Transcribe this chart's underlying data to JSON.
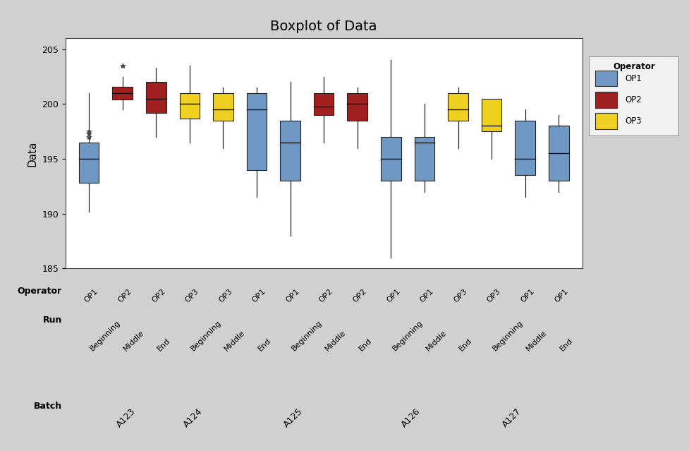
{
  "title": "Boxplot of Data",
  "ylabel": "Data",
  "ylim": [
    185,
    206
  ],
  "yticks": [
    185,
    190,
    195,
    200,
    205
  ],
  "bg_color": "#d0d0d0",
  "plot_bg_color": "#ffffff",
  "boxes": [
    {
      "operator": "OP1",
      "run": "Beginning",
      "batch": "A123",
      "color": "#7098c4",
      "q1": 192.8,
      "median": 195.0,
      "q3": 196.5,
      "whisker_low": 190.2,
      "whisker_high": 201.0,
      "fliers": [
        197.0,
        197.3,
        197.5
      ]
    },
    {
      "operator": "OP2",
      "run": "Middle",
      "batch": "A123",
      "color": "#a02020",
      "q1": 200.4,
      "median": 201.0,
      "q3": 201.6,
      "whisker_low": 199.5,
      "whisker_high": 202.5,
      "fliers": [
        203.5
      ]
    },
    {
      "operator": "OP2",
      "run": "End",
      "batch": "A123",
      "color": "#a02020",
      "q1": 199.2,
      "median": 200.5,
      "q3": 202.0,
      "whisker_low": 197.0,
      "whisker_high": 203.3,
      "fliers": []
    },
    {
      "operator": "OP3",
      "run": "Beginning",
      "batch": "A124",
      "color": "#f0d020",
      "q1": 198.7,
      "median": 200.0,
      "q3": 201.0,
      "whisker_low": 196.5,
      "whisker_high": 203.5,
      "fliers": []
    },
    {
      "operator": "OP3",
      "run": "Middle",
      "batch": "A124",
      "color": "#f0d020",
      "q1": 198.5,
      "median": 199.5,
      "q3": 201.0,
      "whisker_low": 196.0,
      "whisker_high": 201.5,
      "fliers": []
    },
    {
      "operator": "OP1",
      "run": "End",
      "batch": "A124",
      "color": "#7098c4",
      "q1": 194.0,
      "median": 199.5,
      "q3": 201.0,
      "whisker_low": 191.5,
      "whisker_high": 201.5,
      "fliers": []
    },
    {
      "operator": "OP1",
      "run": "Beginning",
      "batch": "A125",
      "color": "#7098c4",
      "q1": 193.0,
      "median": 196.5,
      "q3": 198.5,
      "whisker_low": 188.0,
      "whisker_high": 202.0,
      "fliers": []
    },
    {
      "operator": "OP2",
      "run": "Middle",
      "batch": "A125",
      "color": "#a02020",
      "q1": 199.0,
      "median": 199.8,
      "q3": 201.0,
      "whisker_low": 196.5,
      "whisker_high": 202.5,
      "fliers": []
    },
    {
      "operator": "OP2",
      "run": "End",
      "batch": "A125",
      "color": "#a02020",
      "q1": 198.5,
      "median": 200.0,
      "q3": 201.0,
      "whisker_low": 196.0,
      "whisker_high": 201.5,
      "fliers": []
    },
    {
      "operator": "OP1",
      "run": "Beginning",
      "batch": "A126",
      "color": "#7098c4",
      "q1": 193.0,
      "median": 195.0,
      "q3": 197.0,
      "whisker_low": 186.0,
      "whisker_high": 204.0,
      "fliers": []
    },
    {
      "operator": "OP1",
      "run": "Middle",
      "batch": "A126",
      "color": "#7098c4",
      "q1": 193.0,
      "median": 196.5,
      "q3": 197.0,
      "whisker_low": 192.0,
      "whisker_high": 200.0,
      "fliers": []
    },
    {
      "operator": "OP3",
      "run": "End",
      "batch": "A126",
      "color": "#f0d020",
      "q1": 198.5,
      "median": 199.5,
      "q3": 201.0,
      "whisker_low": 196.0,
      "whisker_high": 201.5,
      "fliers": []
    },
    {
      "operator": "OP3",
      "run": "Beginning",
      "batch": "A127",
      "color": "#f0d020",
      "q1": 197.5,
      "median": 198.0,
      "q3": 200.5,
      "whisker_low": 195.0,
      "whisker_high": 200.5,
      "fliers": []
    },
    {
      "operator": "OP1",
      "run": "Middle",
      "batch": "A127",
      "color": "#7098c4",
      "q1": 193.5,
      "median": 195.0,
      "q3": 198.5,
      "whisker_low": 191.5,
      "whisker_high": 199.5,
      "fliers": []
    },
    {
      "operator": "OP1",
      "run": "End",
      "batch": "A127",
      "color": "#7098c4",
      "q1": 193.0,
      "median": 195.5,
      "q3": 198.0,
      "whisker_low": 192.0,
      "whisker_high": 199.0,
      "fliers": []
    }
  ],
  "operator_labels": [
    "OP1",
    "OP2",
    "OP2",
    "OP3",
    "OP3",
    "OP1",
    "OP1",
    "OP2",
    "OP2",
    "OP1",
    "OP1",
    "OP3",
    "OP3",
    "OP1",
    "OP1"
  ],
  "run_labels": [
    "Beginning",
    "Middle",
    "End",
    "Beginning",
    "Middle",
    "End",
    "Beginning",
    "Middle",
    "End",
    "Beginning",
    "Middle",
    "End",
    "Beginning",
    "Middle",
    "End"
  ],
  "batch_centers": [
    2.0,
    4.0,
    7.0,
    10.5,
    13.5
  ],
  "batch_names": [
    "A123",
    "A124",
    "A125",
    "A126",
    "A127"
  ],
  "legend_colors": {
    "OP1": "#7098c4",
    "OP2": "#a02020",
    "OP3": "#f0d020"
  },
  "box_width": 0.6
}
